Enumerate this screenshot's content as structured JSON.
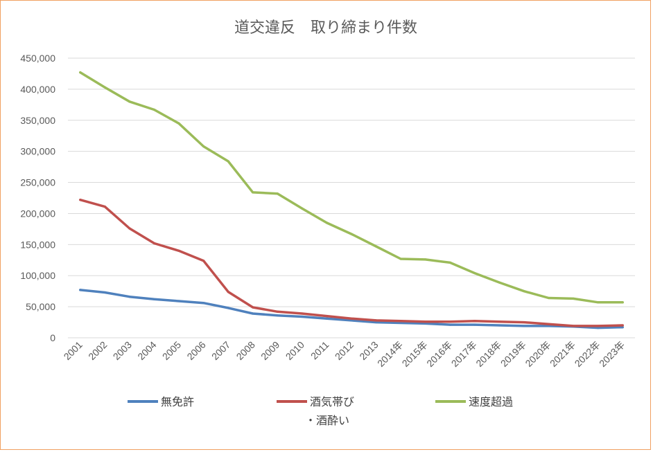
{
  "chart_data": {
    "type": "line",
    "title": "道交違反　取り締まり件数",
    "xlabel": "",
    "ylabel": "",
    "categories": [
      "2001",
      "2002",
      "2003",
      "2004",
      "2005",
      "2006",
      "2007",
      "2008",
      "2009",
      "2010",
      "2011",
      "2012",
      "2013",
      "2014年",
      "2015年",
      "2016年",
      "2017年",
      "2018年",
      "2019年",
      "2020年",
      "2021年",
      "2022年",
      "2023年"
    ],
    "ylim": [
      0,
      450000
    ],
    "yticks": [
      "0",
      "50,000",
      "100,000",
      "150,000",
      "200,000",
      "250,000",
      "300,000",
      "350,000",
      "400,000",
      "450,000"
    ],
    "grid": true,
    "legend_position": "bottom",
    "series": [
      {
        "name": "無免許",
        "color": "#4f81bd",
        "values": [
          77000,
          73000,
          66000,
          62000,
          59000,
          56000,
          48000,
          39000,
          36000,
          34000,
          31000,
          28000,
          25000,
          24000,
          23000,
          21000,
          21000,
          20000,
          19000,
          19000,
          18000,
          16000,
          17000
        ]
      },
      {
        "name": "酒気帯び・酒酔い",
        "name_line1": "酒気帯び",
        "name_line2": "・酒酔い",
        "color": "#c0504d",
        "values": [
          222000,
          211000,
          176000,
          152000,
          140000,
          124000,
          74000,
          49000,
          42000,
          39000,
          35000,
          31000,
          28000,
          27000,
          26000,
          26000,
          27000,
          26000,
          25000,
          22000,
          19000,
          19000,
          20000
        ]
      },
      {
        "name": "速度超過",
        "color": "#9bbb59",
        "values": [
          427000,
          403000,
          380000,
          367000,
          345000,
          308000,
          284000,
          234000,
          232000,
          208000,
          185000,
          167000,
          147000,
          127000,
          126000,
          121000,
          104000,
          89000,
          75000,
          64000,
          63000,
          57000,
          57000
        ]
      }
    ]
  }
}
